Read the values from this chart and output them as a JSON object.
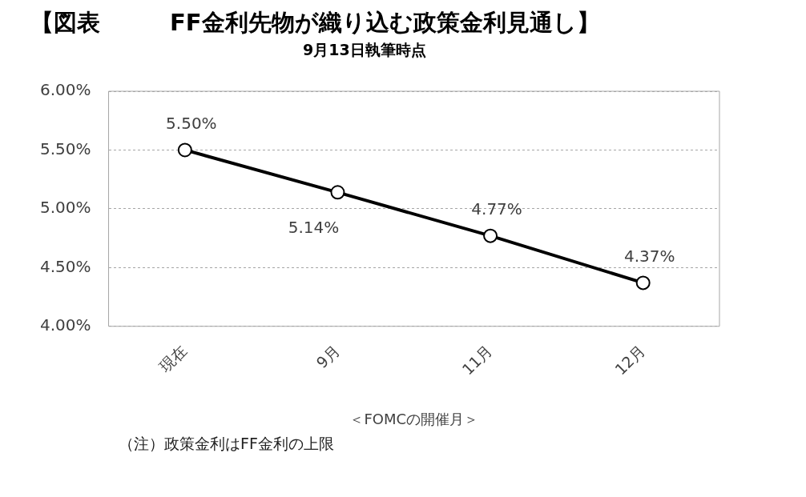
{
  "chart_data": {
    "type": "line",
    "title": "【図表　　　FF金利先物が織り込む政策金利見通し】",
    "subtitle": "9月13日執筆時点",
    "xlabel": "＜FOMCの開催月＞",
    "categories": [
      "現在",
      "9月",
      "11月",
      "12月"
    ],
    "series": [
      {
        "color": "#000000",
        "values": [
          5.5,
          5.14,
          4.77,
          4.37
        ],
        "value_labels": [
          "5.50%",
          "5.14%",
          "4.77%",
          "4.37%"
        ]
      }
    ],
    "ylim": [
      4,
      6
    ],
    "yticks": [
      {
        "value": 4,
        "label": "4.00%"
      },
      {
        "value": 4.5,
        "label": "4.50%"
      },
      {
        "value": 5,
        "label": "5.00%"
      },
      {
        "value": 5.5,
        "label": "5.50%"
      },
      {
        "value": 6,
        "label": "6.00%"
      }
    ],
    "grid": "y",
    "legend": false,
    "marker": "circle",
    "line_style": "solid",
    "annotations": [
      "（注）政策金利はFF金利の上限"
    ]
  }
}
